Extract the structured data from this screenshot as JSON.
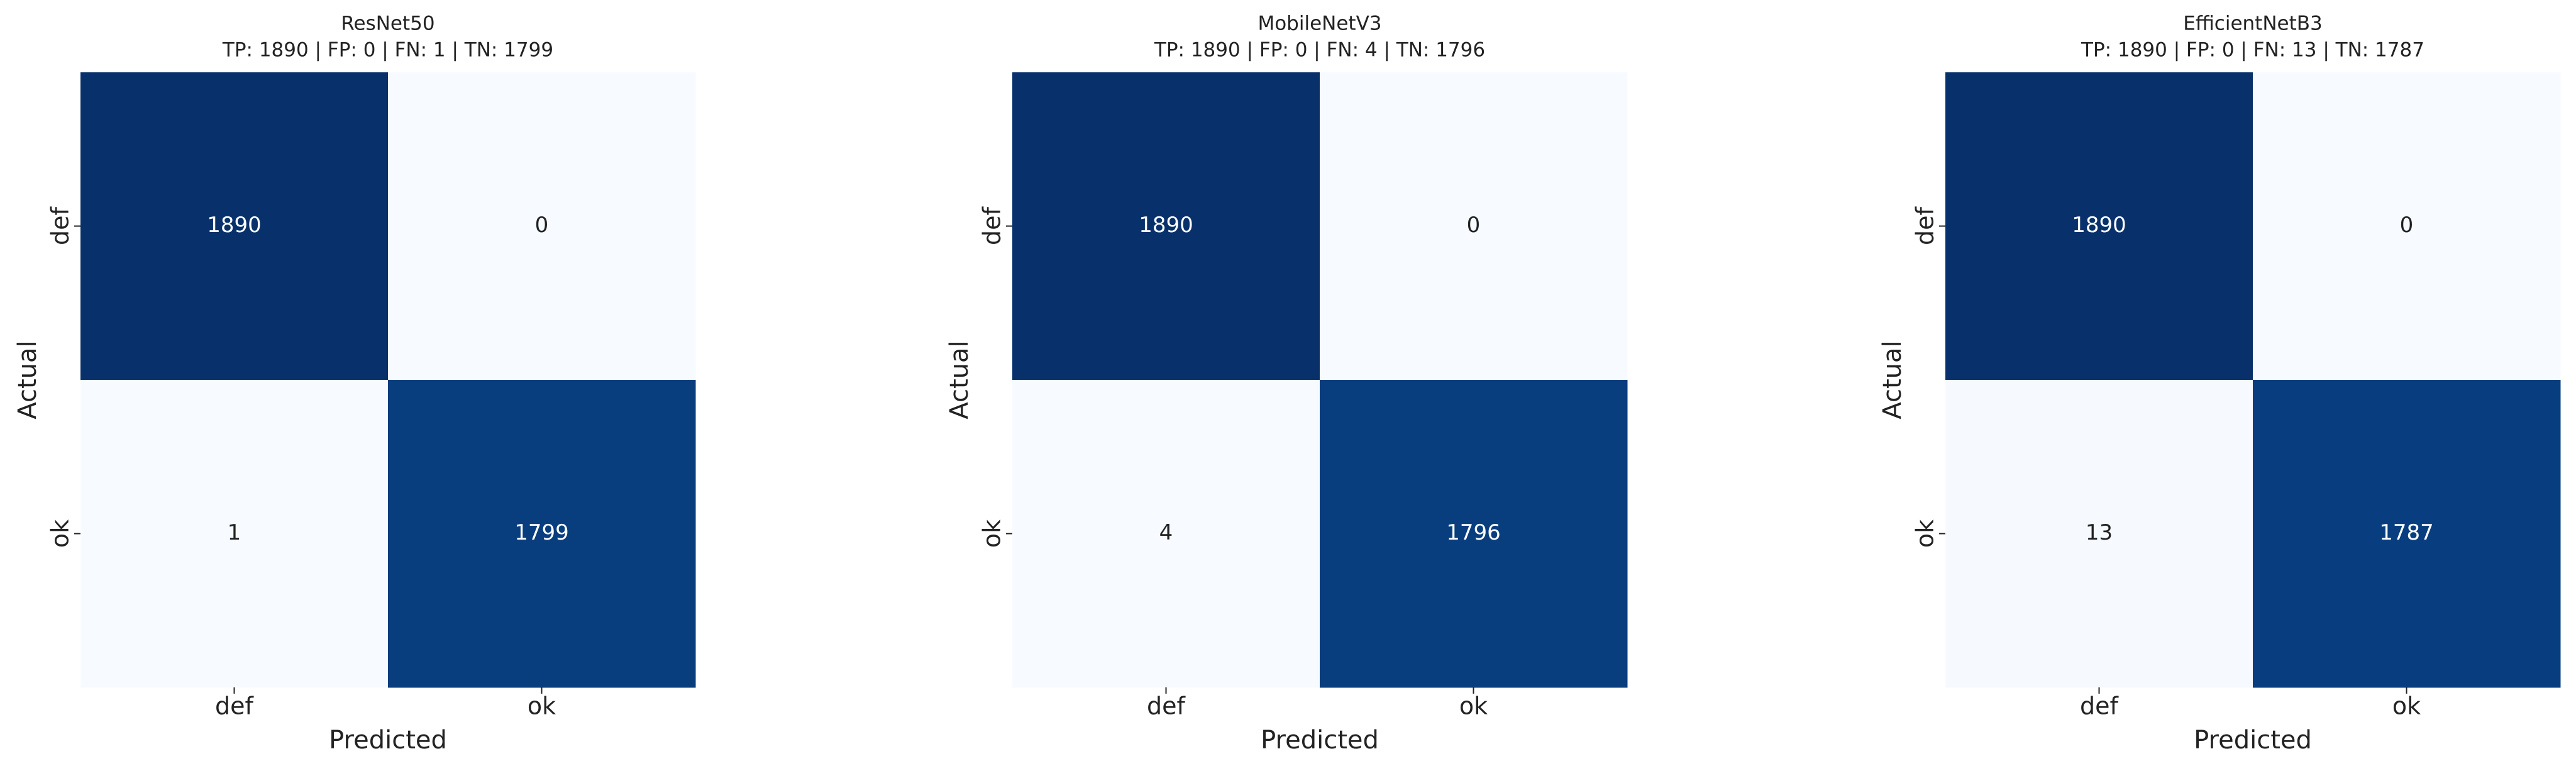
{
  "chart_data": [
    {
      "type": "heatmap",
      "title": "ResNet50",
      "subtitle": "TP: 1890 | FP: 0 | FN: 1 | TN: 1799",
      "x_label": "Predicted",
      "y_label": "Actual",
      "x_categories": [
        "def",
        "ok"
      ],
      "y_categories": [
        "def",
        "ok"
      ],
      "values": [
        [
          1890,
          0
        ],
        [
          1,
          1799
        ]
      ],
      "colormap": "Blues"
    },
    {
      "type": "heatmap",
      "title": "MobileNetV3",
      "subtitle": "TP: 1890 | FP: 0 | FN: 4 | TN: 1796",
      "x_label": "Predicted",
      "y_label": "Actual",
      "x_categories": [
        "def",
        "ok"
      ],
      "y_categories": [
        "def",
        "ok"
      ],
      "values": [
        [
          1890,
          0
        ],
        [
          4,
          1796
        ]
      ],
      "colormap": "Blues"
    },
    {
      "type": "heatmap",
      "title": "EfficientNetB3",
      "subtitle": "TP: 1890 | FP: 0 | FN: 13 | TN: 1787",
      "x_label": "Predicted",
      "y_label": "Actual",
      "x_categories": [
        "def",
        "ok"
      ],
      "y_categories": [
        "def",
        "ok"
      ],
      "values": [
        [
          1890,
          0
        ],
        [
          13,
          1787
        ]
      ],
      "colormap": "Blues"
    }
  ]
}
